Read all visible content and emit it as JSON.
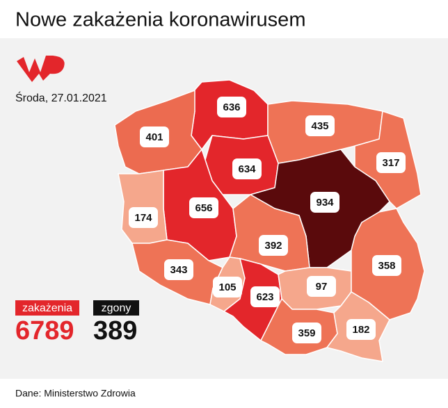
{
  "header": {
    "title": "Nowe zakażenia koronawirusem",
    "date": "Środa, 27.01.2021"
  },
  "regions": [
    {
      "value": 636,
      "color": "#e3262b"
    },
    {
      "value": 401,
      "color": "#ec6b50"
    },
    {
      "value": 435,
      "color": "#ee7356"
    },
    {
      "value": 317,
      "color": "#ee7356"
    },
    {
      "value": 634,
      "color": "#e3262b"
    },
    {
      "value": 656,
      "color": "#e3262b"
    },
    {
      "value": 174,
      "color": "#f5a78c"
    },
    {
      "value": 934,
      "color": "#5a0a0c"
    },
    {
      "value": 392,
      "color": "#ee7356"
    },
    {
      "value": 343,
      "color": "#ee7356"
    },
    {
      "value": 105,
      "color": "#f5a78c"
    },
    {
      "value": 623,
      "color": "#e3262b"
    },
    {
      "value": 97,
      "color": "#f5a78c"
    },
    {
      "value": 358,
      "color": "#ee7356"
    },
    {
      "value": 359,
      "color": "#ee7356"
    },
    {
      "value": 182,
      "color": "#f5a78c"
    }
  ],
  "totals": {
    "cases_label": "zakażenia",
    "cases": 6789,
    "deaths_label": "zgony",
    "deaths": 389
  },
  "source": "Dane: Ministerstwo Zdrowia"
}
